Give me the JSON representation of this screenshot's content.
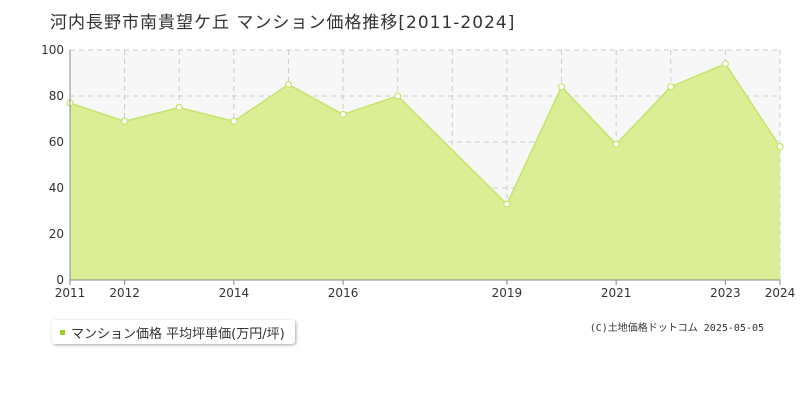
{
  "chart_data": {
    "type": "area",
    "title": "河内長野市南貴望ケ丘 マンション価格推移[2011-2024]",
    "xlabel": "",
    "ylabel": "",
    "x": [
      2011,
      2012,
      2013,
      2014,
      2015,
      2016,
      2017,
      2019,
      2020,
      2021,
      2022,
      2023,
      2024
    ],
    "xlim": [
      2011,
      2024
    ],
    "xticks": [
      "2011",
      "2012",
      "2014",
      "2016",
      "2019",
      "2021",
      "2023",
      "2024"
    ],
    "ylim": [
      0,
      100
    ],
    "yticks": [
      "0",
      "20",
      "40",
      "60",
      "80",
      "100"
    ],
    "grid": true,
    "legend_position": "bottom-left",
    "series": [
      {
        "name": "マンション価格 平均坪単価(万円/坪)",
        "values": [
          77,
          69,
          75,
          69,
          85,
          72,
          80,
          33,
          84,
          59,
          84,
          94,
          58
        ],
        "color": "#c9e56d"
      }
    ]
  },
  "legend": {
    "label": "マンション価格 平均坪単価(万円/坪)"
  },
  "credit": "(C)土地価格ドットコム 2025-05-05",
  "colors": {
    "fill": "#dbee95",
    "line": "#c5e46a",
    "grid": "#cccccc",
    "plot_bg": "#f7f7f7",
    "legend_marker": "#9ccc2a"
  }
}
